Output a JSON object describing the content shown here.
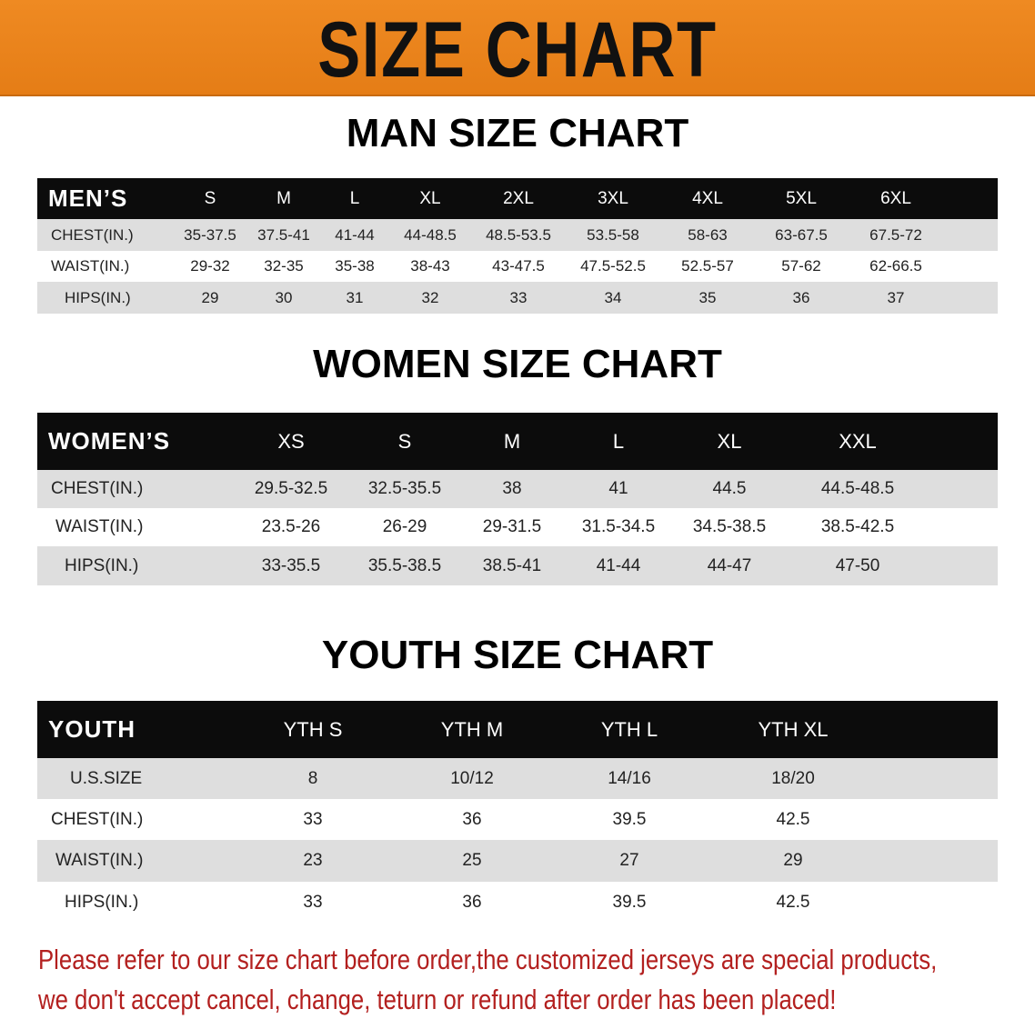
{
  "banner": {
    "title": "SIZE CHART",
    "color": "#e9821b"
  },
  "men": {
    "title": "MAN SIZE CHART",
    "header": "MEN’S",
    "sizes": [
      "S",
      "M",
      "L",
      "XL",
      "2XL",
      "3XL",
      "4XL",
      "5XL",
      "6XL"
    ],
    "rows": [
      {
        "label": "CHEST(IN.)",
        "values": [
          "35-37.5",
          "37.5-41",
          "41-44",
          "44-48.5",
          "48.5-53.5",
          "53.5-58",
          "58-63",
          "63-67.5",
          "67.5-72"
        ]
      },
      {
        "label": "WAIST(IN.)",
        "values": [
          "29-32",
          "32-35",
          "35-38",
          "38-43",
          "43-47.5",
          "47.5-52.5",
          "52.5-57",
          "57-62",
          "62-66.5"
        ]
      },
      {
        "label": "HIPS(IN.)",
        "values": [
          "29",
          "30",
          "31",
          "32",
          "33",
          "34",
          "35",
          "36",
          "37"
        ]
      }
    ]
  },
  "women": {
    "title": "WOMEN SIZE CHART",
    "header": "WOMEN’S",
    "sizes": [
      "XS",
      "S",
      "M",
      "L",
      "XL",
      "XXL"
    ],
    "rows": [
      {
        "label": "CHEST(IN.)",
        "values": [
          "29.5-32.5",
          "32.5-35.5",
          "38",
          "41",
          "44.5",
          "44.5-48.5"
        ]
      },
      {
        "label": "WAIST(IN.)",
        "values": [
          "23.5-26",
          "26-29",
          "29-31.5",
          "31.5-34.5",
          "34.5-38.5",
          "38.5-42.5"
        ]
      },
      {
        "label": "HIPS(IN.)",
        "values": [
          "33-35.5",
          "35.5-38.5",
          "38.5-41",
          "41-44",
          "44-47",
          "47-50"
        ]
      }
    ]
  },
  "youth": {
    "title": "YOUTH SIZE CHART",
    "header": "YOUTH",
    "sizes": [
      "YTH S",
      "YTH M",
      "YTH L",
      "YTH XL"
    ],
    "rows": [
      {
        "label": "U.S.SIZE",
        "values": [
          "8",
          "10/12",
          "14/16",
          "18/20"
        ]
      },
      {
        "label": "CHEST(IN.)",
        "values": [
          "33",
          "36",
          "39.5",
          "42.5"
        ]
      },
      {
        "label": "WAIST(IN.)",
        "values": [
          "23",
          "25",
          "27",
          "29"
        ]
      },
      {
        "label": "HIPS(IN.)",
        "values": [
          "33",
          "36",
          "39.5",
          "42.5"
        ]
      }
    ]
  },
  "notice": {
    "line1": "Please refer to our size chart before order,the customized jerseys are special products,",
    "line2": "we don't accept cancel, change, teturn or refund after order has been placed!",
    "color": "#b3201f"
  }
}
